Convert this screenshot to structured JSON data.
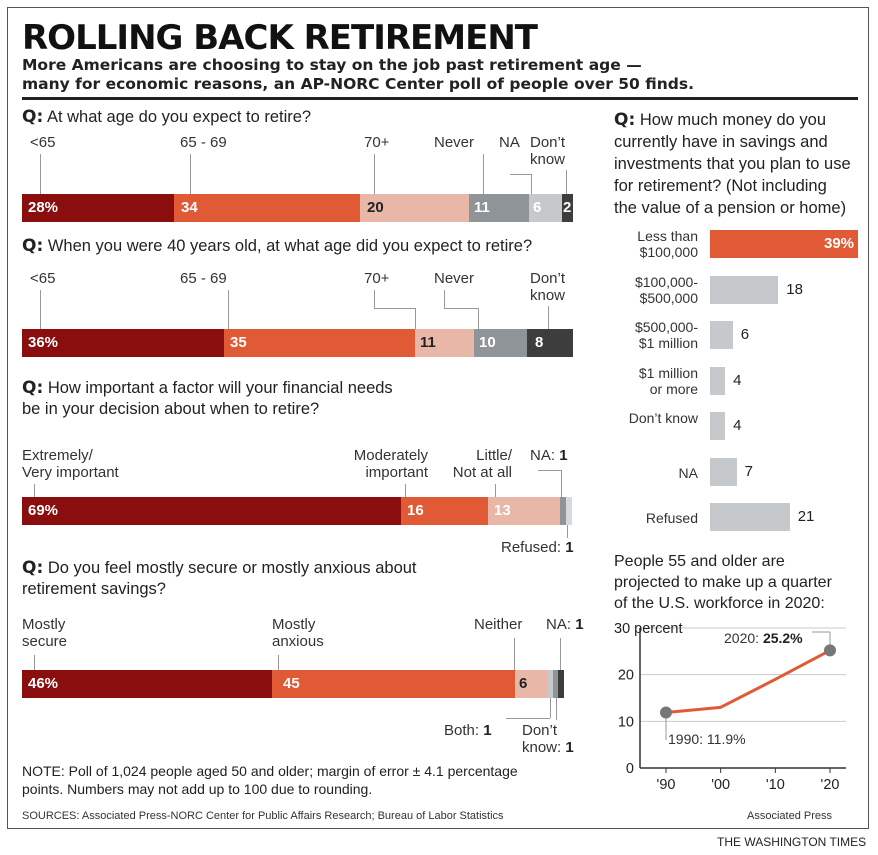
{
  "header": {
    "title": "ROLLING BACK RETIREMENT",
    "subtitle_line1": "More Americans are choosing to stay on the job past retirement age —",
    "subtitle_line2": "many for economic reasons, an AP-NORC Center poll of people over 50 finds."
  },
  "colors": {
    "dark_red": "#8b0e0e",
    "orange": "#e05a36",
    "pink": "#e8b7a8",
    "gray": "#8f9498",
    "dark_gray": "#3d3d3d",
    "light_gray": "#c6c9cb",
    "very_light": "#d8d9da"
  },
  "questions": [
    {
      "q_mark": "Q:",
      "text_line1": "At what age do you expect to retire?",
      "segments": [
        {
          "label": "<65",
          "value": 28,
          "display": "28%"
        },
        {
          "label": "65 - 69",
          "value": 34,
          "display": "34"
        },
        {
          "label": "70+",
          "value": 20,
          "display": "20"
        },
        {
          "label": "Never",
          "value": 11,
          "display": "11"
        },
        {
          "label": "NA",
          "value": 6,
          "display": "6"
        },
        {
          "label_line1": "Don’t",
          "label_line2": "know",
          "value": 2,
          "display": "2"
        }
      ]
    },
    {
      "q_mark": "Q:",
      "text_line1": "When you were 40 years old, at what age did you expect to retire?",
      "segments": [
        {
          "label": "<65",
          "value": 36,
          "display": "36%"
        },
        {
          "label": "65 - 69",
          "value": 35,
          "display": "35"
        },
        {
          "label": "70+",
          "value": 11,
          "display": "11"
        },
        {
          "label": "Never",
          "value": 10,
          "display": "10"
        },
        {
          "label_line1": "Don’t",
          "label_line2": "know",
          "value": 8,
          "display": "8"
        }
      ]
    },
    {
      "q_mark": "Q:",
      "text_line1": "How important a factor will your financial needs",
      "text_line2": "be in your decision about when to retire?",
      "segments": [
        {
          "label_line1": "Extremely/",
          "label_line2": "Very important",
          "value": 69,
          "display": "69%"
        },
        {
          "label_line1": "Moderately",
          "label_line2": "important",
          "value": 16,
          "display": "16"
        },
        {
          "label_line1": "Little/",
          "label_line2": "Not at all",
          "value": 13,
          "display": "13"
        },
        {
          "label": "NA:",
          "value": 1,
          "display": "1"
        },
        {
          "label": "Refused:",
          "value": 1,
          "display": "1"
        }
      ]
    },
    {
      "q_mark": "Q:",
      "text_line1": "Do you feel mostly secure or mostly anxious about",
      "text_line2": "retirement savings?",
      "segments": [
        {
          "label_line1": "Mostly",
          "label_line2": "secure",
          "value": 46,
          "display": "46%"
        },
        {
          "label_line1": "Mostly",
          "label_line2": "anxious",
          "value": 45,
          "display": "45"
        },
        {
          "label": "Neither",
          "value": 6,
          "display": "6"
        },
        {
          "label": "Both:",
          "value": 1,
          "display": "1"
        },
        {
          "label": "NA:",
          "value": 1,
          "display": "1"
        },
        {
          "label_line1": "Don’t",
          "label_line2": "know:",
          "value": 1,
          "display": "1"
        }
      ]
    }
  ],
  "savings": {
    "q_mark": "Q:",
    "lines": [
      "How much money do you",
      "currently have in savings and",
      "investments that you plan to use",
      "for retirement? (Not including",
      "the value of a pension or home)"
    ]
  },
  "trend": {
    "line1": "People 55 and older are",
    "line2": "projected to make up a quarter",
    "line3": "of the U.S. workforce in 2020:",
    "annot_start": "1990: 11.9%",
    "annot_end_prefix": "2020: ",
    "annot_end_value": "25.2%"
  },
  "chart_data": [
    {
      "type": "bar",
      "title": "At what age do you expect to retire?",
      "categories": [
        "<65",
        "65 - 69",
        "70+",
        "Never",
        "NA",
        "Don’t know"
      ],
      "values": [
        28,
        34,
        20,
        11,
        6,
        2
      ]
    },
    {
      "type": "bar",
      "title": "When you were 40 years old, at what age did you expect to retire?",
      "categories": [
        "<65",
        "65 - 69",
        "70+",
        "Never",
        "Don’t know"
      ],
      "values": [
        36,
        35,
        11,
        10,
        8
      ]
    },
    {
      "type": "bar",
      "title": "How important a factor will your financial needs be in your decision about when to retire?",
      "categories": [
        "Extremely/Very important",
        "Moderately important",
        "Little/Not at all",
        "NA",
        "Refused"
      ],
      "values": [
        69,
        16,
        13,
        1,
        1
      ]
    },
    {
      "type": "bar",
      "title": "Do you feel mostly secure or mostly anxious about retirement savings?",
      "categories": [
        "Mostly secure",
        "Mostly anxious",
        "Neither",
        "Both",
        "NA",
        "Don’t know"
      ],
      "values": [
        46,
        45,
        6,
        1,
        1,
        1
      ]
    },
    {
      "type": "bar",
      "title": "How much money do you currently have in savings and investments that you plan to use for retirement? (Not including the value of a pension or home)",
      "categories": [
        {
          "line1": "Less than",
          "line2": "$100,000"
        },
        {
          "line1": "$100,000-",
          "line2": "$500,000"
        },
        {
          "line1": "$500,000-",
          "line2": "$1 million"
        },
        {
          "line1": "$1 million",
          "line2": "or more"
        },
        {
          "line1": "Don’t know"
        },
        {
          "line1": "NA"
        },
        {
          "line1": "Refused"
        }
      ],
      "values": [
        39,
        18,
        6,
        4,
        4,
        7,
        21
      ],
      "display": [
        "39%",
        "18",
        "6",
        "4",
        "4",
        "7",
        "21"
      ]
    },
    {
      "type": "line",
      "x": [
        1990,
        2000,
        2010,
        2020
      ],
      "x_tick_labels": [
        "'90",
        "'00",
        "'10",
        "'20"
      ],
      "y": [
        11.9,
        13.0,
        19.0,
        25.2
      ],
      "ylim": [
        0,
        30
      ],
      "y_ticks": [
        0,
        10,
        20,
        30
      ],
      "y_tick_labels": [
        "0",
        "10",
        "20",
        "30 percent"
      ]
    }
  ],
  "footer": {
    "note_line1": "NOTE: Poll of 1,024 people aged 50 and older; margin of error ± 4.1 percentage",
    "note_line2": "points. Numbers may not add up to 100 due to rounding.",
    "sources": "SOURCES:  Associated Press-NORC Center for Public Affairs Research; Bureau of Labor Statistics",
    "credit": "Associated Press",
    "publisher": "THE WASHINGTON TIMES"
  }
}
